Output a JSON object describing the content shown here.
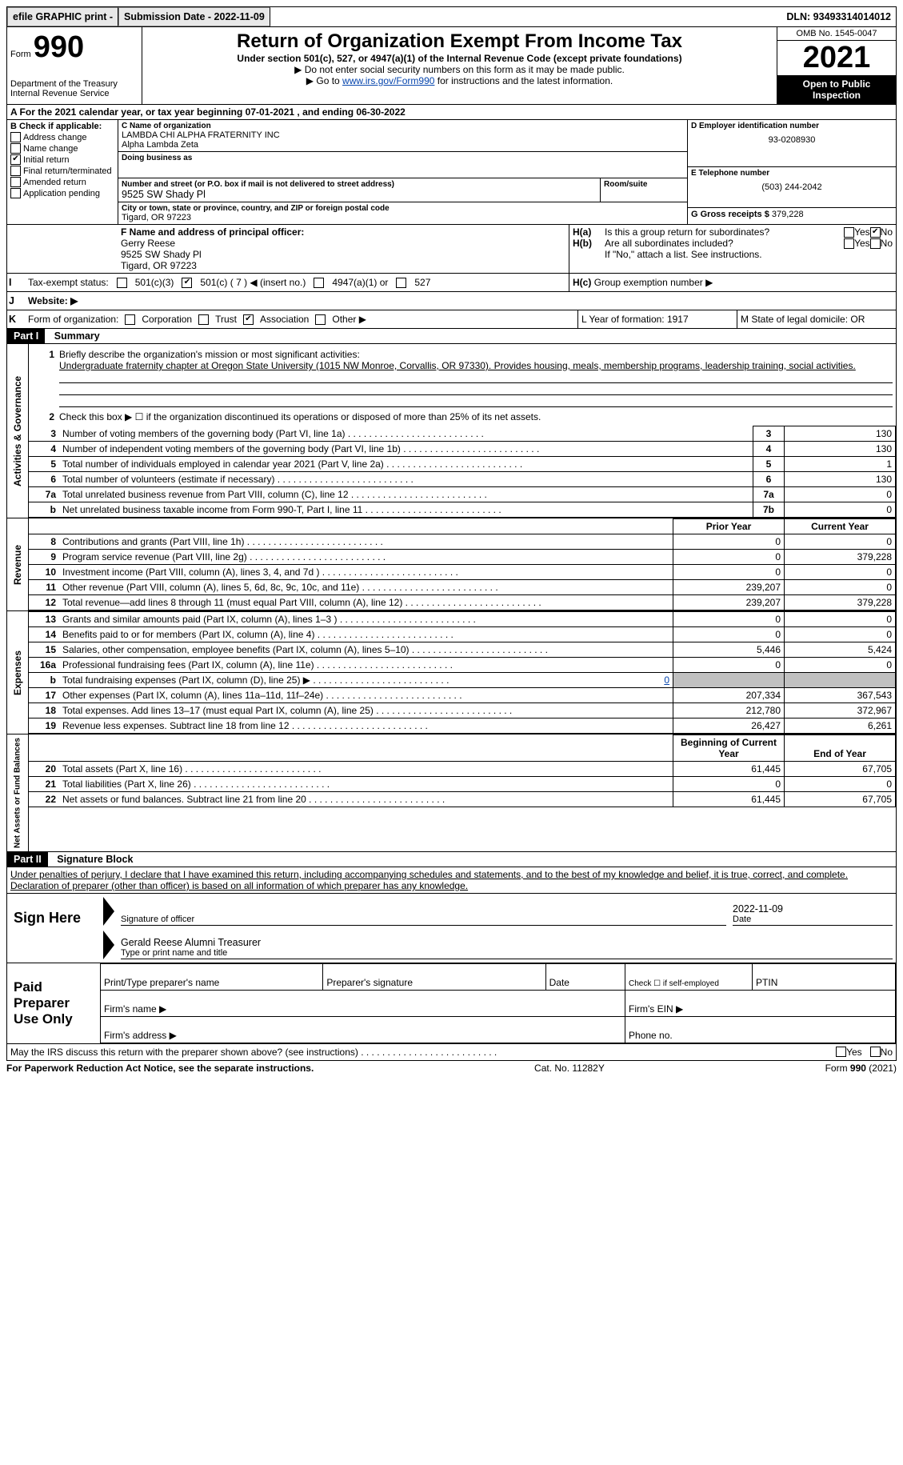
{
  "topbar": {
    "efile": "efile GRAPHIC print -",
    "submission": "Submission Date - 2022-11-09",
    "dln": "DLN: 93493314014012"
  },
  "header": {
    "form_label": "Form",
    "form_num": "990",
    "dept": "Department of the Treasury",
    "irs": "Internal Revenue Service",
    "title": "Return of Organization Exempt From Income Tax",
    "subtitle": "Under section 501(c), 527, or 4947(a)(1) of the Internal Revenue Code (except private foundations)",
    "note1": "▶ Do not enter social security numbers on this form as it may be made public.",
    "note2_pre": "▶ Go to ",
    "note2_link": "www.irs.gov/Form990",
    "note2_post": " for instructions and the latest information.",
    "omb": "OMB No. 1545-0047",
    "year": "2021",
    "inspection": "Open to Public Inspection"
  },
  "lineA": {
    "text_pre": "A For the 2021 calendar year, or tax year beginning ",
    "begin": "07-01-2021",
    "mid": "  , and ending ",
    "end": "06-30-2022"
  },
  "colB": {
    "header": "B Check if applicable:",
    "items": [
      {
        "label": "Address change",
        "checked": false
      },
      {
        "label": "Name change",
        "checked": false
      },
      {
        "label": "Initial return",
        "checked": true
      },
      {
        "label": "Final return/terminated",
        "checked": false
      },
      {
        "label": "Amended return",
        "checked": false
      },
      {
        "label": "Application pending",
        "checked": false
      }
    ]
  },
  "colC": {
    "name_label": "C Name of organization",
    "name1": "LAMBDA CHI ALPHA FRATERNITY INC",
    "name2": "Alpha Lambda Zeta",
    "dba_label": "Doing business as",
    "addr_label": "Number and street (or P.O. box if mail is not delivered to street address)",
    "room_label": "Room/suite",
    "addr": "9525 SW Shady Pl",
    "city_label": "City or town, state or province, country, and ZIP or foreign postal code",
    "city": "Tigard, OR  97223"
  },
  "colD": {
    "ein_label": "D Employer identification number",
    "ein": "93-0208930",
    "phone_label": "E Telephone number",
    "phone": "(503) 244-2042",
    "gross_label": "G Gross receipts $",
    "gross": "379,228"
  },
  "officer": {
    "label": "F Name and address of principal officer:",
    "name": "Gerry Reese",
    "addr1": "9525 SW Shady Pl",
    "addr2": "Tigard, OR  97223"
  },
  "sectionH": {
    "ha": "Is this a group return for subordinates?",
    "hb": "Are all subordinates included?",
    "hb_note": "If \"No,\" attach a list. See instructions.",
    "hc": "Group exemption number ▶",
    "ha_label": "H(a)",
    "hb_label": "H(b)",
    "hc_label": "H(c)"
  },
  "taxexempt": {
    "label": "Tax-exempt status:",
    "opt1": "501(c)(3)",
    "opt2": "501(c) ( 7 ) ◀ (insert no.)",
    "opt3": "4947(a)(1) or",
    "opt4": "527",
    "I": "I",
    "J": "J",
    "website": "Website: ▶"
  },
  "lineK": {
    "K": "K",
    "label": "Form of organization:",
    "opts": [
      "Corporation",
      "Trust",
      "Association",
      "Other ▶"
    ],
    "L": "L Year of formation: 1917",
    "M": "M State of legal domicile: OR"
  },
  "part1": {
    "label": "Part I",
    "title": "Summary",
    "line1_label": "Briefly describe the organization's mission or most significant activities:",
    "line1_text": "Undergraduate fraternity chapter at Oregon State University (1015 NW Monroe, Corvallis, OR 97330). Provides housing, meals, membership programs, leadership training, social activities.",
    "line2": "Check this box ▶ ☐ if the organization discontinued its operations or disposed of more than 25% of its net assets.",
    "sideA": "Activities & Governance",
    "sideR": "Revenue",
    "sideE": "Expenses",
    "sideN": "Net Assets or Fund Balances"
  },
  "table_gov": {
    "rows": [
      {
        "n": "3",
        "desc": "Number of voting members of the governing body (Part VI, line 1a)",
        "box": "3",
        "val": "130"
      },
      {
        "n": "4",
        "desc": "Number of independent voting members of the governing body (Part VI, line 1b)",
        "box": "4",
        "val": "130"
      },
      {
        "n": "5",
        "desc": "Total number of individuals employed in calendar year 2021 (Part V, line 2a)",
        "box": "5",
        "val": "1"
      },
      {
        "n": "6",
        "desc": "Total number of volunteers (estimate if necessary)",
        "box": "6",
        "val": "130"
      },
      {
        "n": "7a",
        "desc": "Total unrelated business revenue from Part VIII, column (C), line 12",
        "box": "7a",
        "val": "0"
      },
      {
        "n": "b",
        "desc": "Net unrelated business taxable income from Form 990-T, Part I, line 11",
        "box": "7b",
        "val": "0"
      }
    ]
  },
  "table_fin": {
    "head_prior": "Prior Year",
    "head_current": "Current Year",
    "head_begin": "Beginning of Current Year",
    "head_end": "End of Year",
    "rev": [
      {
        "n": "8",
        "desc": "Contributions and grants (Part VIII, line 1h)",
        "prior": "0",
        "curr": "0"
      },
      {
        "n": "9",
        "desc": "Program service revenue (Part VIII, line 2g)",
        "prior": "0",
        "curr": "379,228"
      },
      {
        "n": "10",
        "desc": "Investment income (Part VIII, column (A), lines 3, 4, and 7d )",
        "prior": "0",
        "curr": "0"
      },
      {
        "n": "11",
        "desc": "Other revenue (Part VIII, column (A), lines 5, 6d, 8c, 9c, 10c, and 11e)",
        "prior": "239,207",
        "curr": "0"
      },
      {
        "n": "12",
        "desc": "Total revenue—add lines 8 through 11 (must equal Part VIII, column (A), line 12)",
        "prior": "239,207",
        "curr": "379,228"
      }
    ],
    "exp": [
      {
        "n": "13",
        "desc": "Grants and similar amounts paid (Part IX, column (A), lines 1–3 )",
        "prior": "0",
        "curr": "0"
      },
      {
        "n": "14",
        "desc": "Benefits paid to or for members (Part IX, column (A), line 4)",
        "prior": "0",
        "curr": "0"
      },
      {
        "n": "15",
        "desc": "Salaries, other compensation, employee benefits (Part IX, column (A), lines 5–10)",
        "prior": "5,446",
        "curr": "5,424"
      },
      {
        "n": "16a",
        "desc": "Professional fundraising fees (Part IX, column (A), line 11e)",
        "prior": "0",
        "curr": "0"
      },
      {
        "n": "b",
        "desc": "Total fundraising expenses (Part IX, column (D), line 25) ▶",
        "extra": "0",
        "prior": "GRAY",
        "curr": "GRAY"
      },
      {
        "n": "17",
        "desc": "Other expenses (Part IX, column (A), lines 11a–11d, 11f–24e)",
        "prior": "207,334",
        "curr": "367,543"
      },
      {
        "n": "18",
        "desc": "Total expenses. Add lines 13–17 (must equal Part IX, column (A), line 25)",
        "prior": "212,780",
        "curr": "372,967"
      },
      {
        "n": "19",
        "desc": "Revenue less expenses. Subtract line 18 from line 12",
        "prior": "26,427",
        "curr": "6,261"
      }
    ],
    "net": [
      {
        "n": "20",
        "desc": "Total assets (Part X, line 16)",
        "prior": "61,445",
        "curr": "67,705"
      },
      {
        "n": "21",
        "desc": "Total liabilities (Part X, line 26)",
        "prior": "0",
        "curr": "0"
      },
      {
        "n": "22",
        "desc": "Net assets or fund balances. Subtract line 21 from line 20",
        "prior": "61,445",
        "curr": "67,705"
      }
    ]
  },
  "part2": {
    "label": "Part II",
    "title": "Signature Block",
    "declaration": "Under penalties of perjury, I declare that I have examined this return, including accompanying schedules and statements, and to the best of my knowledge and belief, it is true, correct, and complete. Declaration of preparer (other than officer) is based on all information of which preparer has any knowledge."
  },
  "sign": {
    "label1": "Sign Here",
    "sig_officer": "Signature of officer",
    "date": "2022-11-09",
    "date_label": "Date",
    "typed_name": "Gerald Reese  Alumni Treasurer",
    "typed_label": "Type or print name and title",
    "label2": "Paid Preparer Use Only",
    "prep_name": "Print/Type preparer's name",
    "prep_sig": "Preparer's signature",
    "prep_date": "Date",
    "self_emp": "Check ☐ if self-employed",
    "ptin": "PTIN",
    "firm_name": "Firm's name  ▶",
    "firm_ein": "Firm's EIN ▶",
    "firm_addr": "Firm's address ▶",
    "phone": "Phone no."
  },
  "bottom": {
    "discuss": "May the IRS discuss this return with the preparer shown above? (see instructions)",
    "yes": "Yes",
    "no": "No",
    "paperwork": "For Paperwork Reduction Act Notice, see the separate instructions.",
    "cat": "Cat. No. 11282Y",
    "form": "Form 990 (2021)"
  }
}
